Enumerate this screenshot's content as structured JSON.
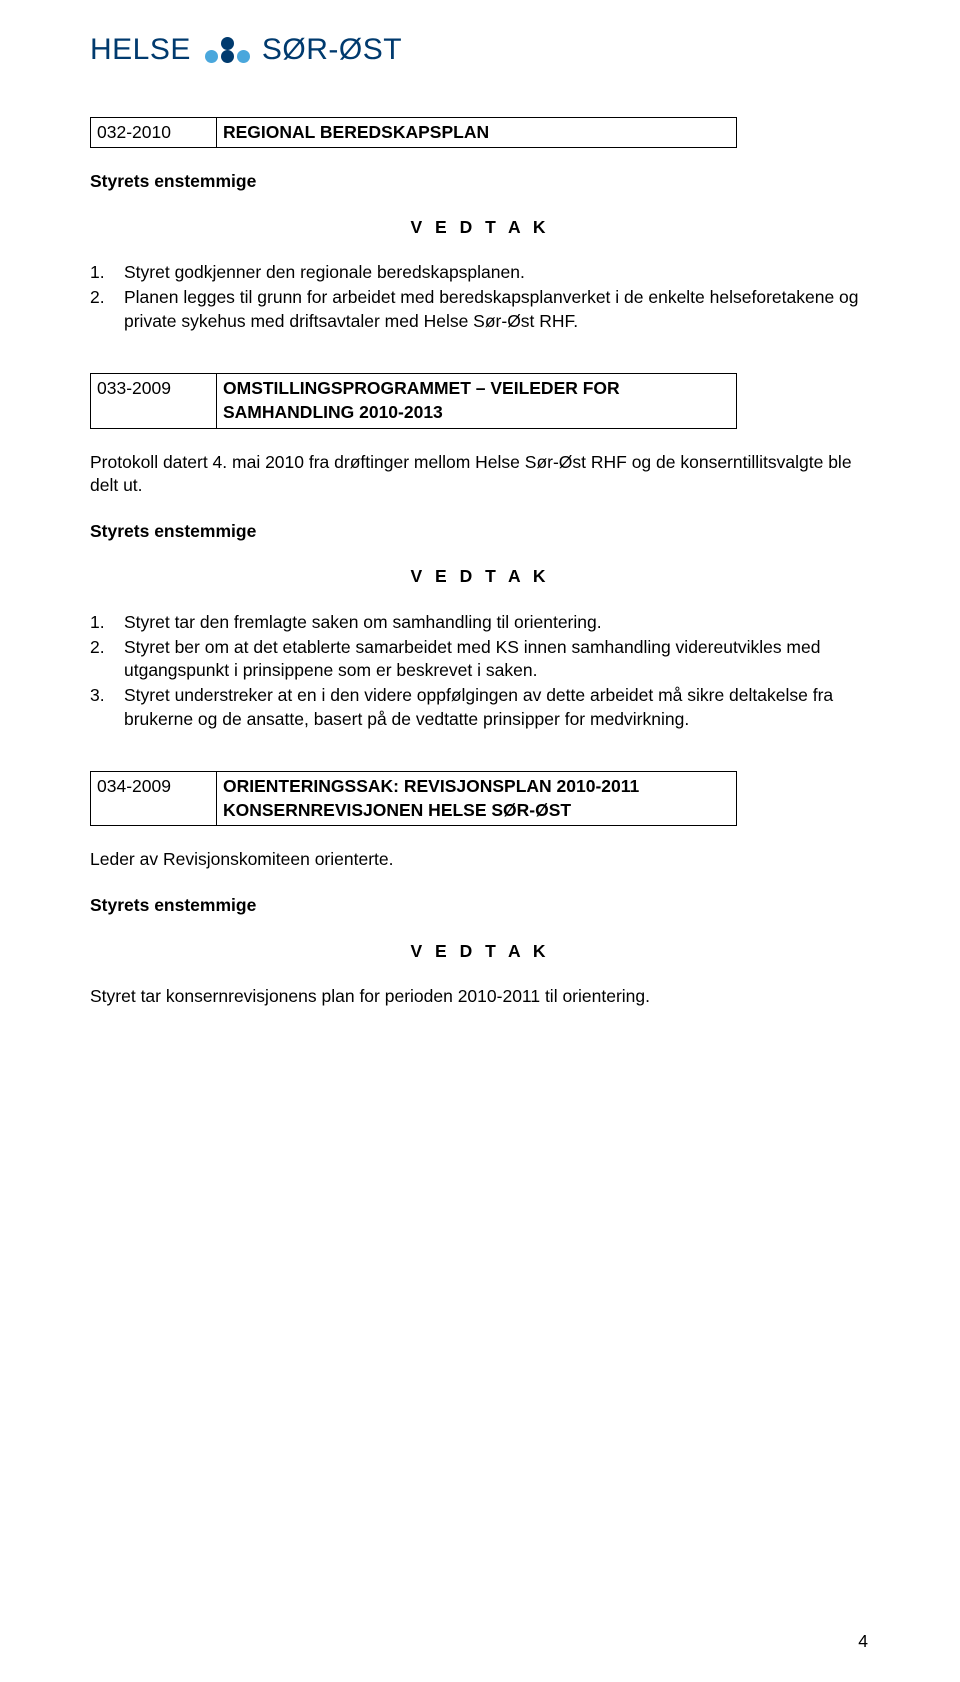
{
  "logo": {
    "left": "HELSE",
    "right": "SØR-ØST"
  },
  "sec032": {
    "code": "032-2010",
    "title": "REGIONAL BEREDSKAPSPLAN",
    "intro": "Styrets enstemmige",
    "vedtak": "V E D T A K",
    "items": [
      "Styret godkjenner den regionale beredskapsplanen.",
      "Planen legges til grunn for arbeidet med beredskapsplanverket i de enkelte helseforetakene og private sykehus med driftsavtaler med Helse Sør-Øst RHF."
    ]
  },
  "sec033": {
    "code": "033-2009",
    "title": "OMSTILLINGSPROGRAMMET – VEILEDER FOR SAMHANDLING 2010-2013",
    "preamble": "Protokoll datert 4. mai 2010 fra drøftinger mellom Helse Sør-Øst RHF og de konserntillitsvalgte ble delt ut.",
    "intro": "Styrets enstemmige",
    "vedtak": "V E D T A K",
    "items": [
      "Styret tar den fremlagte saken om samhandling til orientering.",
      "Styret ber om at det etablerte samarbeidet med KS innen samhandling videreutvikles med utgangspunkt i prinsippene som er beskrevet i saken.",
      "Styret understreker at en i den videre oppfølgingen av dette arbeidet må sikre deltakelse fra brukerne og de ansatte, basert på de vedtatte prinsipper for medvirkning."
    ]
  },
  "sec034": {
    "code": "034-2009",
    "title": "ORIENTERINGSSAK: REVISJONSPLAN 2010-2011 KONSERNREVISJONEN HELSE SØR-ØST",
    "preamble": "Leder av Revisjonskomiteen orienterte.",
    "intro": "Styrets enstemmige",
    "vedtak": "V E D T A K",
    "closing": "Styret tar konsernrevisjonens plan for perioden 2010-2011 til orientering."
  },
  "page_number": "4"
}
